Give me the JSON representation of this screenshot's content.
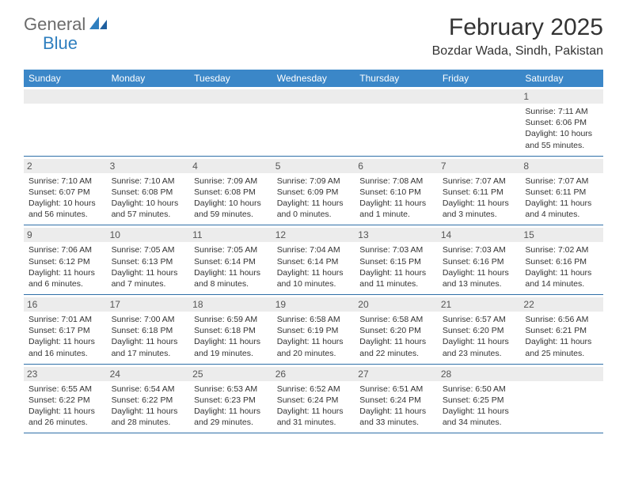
{
  "brand": {
    "part1": "General",
    "part2": "Blue"
  },
  "title": "February 2025",
  "location": "Bozdar Wada, Sindh, Pakistan",
  "colors": {
    "header_bg": "#3b87c8",
    "header_text": "#ffffff",
    "daynum_bg": "#ececec",
    "border": "#2f6fa8",
    "text": "#333333",
    "brand_gray": "#6b6b6b",
    "brand_blue": "#2f7fbf"
  },
  "typography": {
    "title_fontsize": 30,
    "location_fontsize": 16,
    "weekday_fontsize": 12,
    "daynum_fontsize": 12,
    "body_fontsize": 10.5
  },
  "weekdays": [
    "Sunday",
    "Monday",
    "Tuesday",
    "Wednesday",
    "Thursday",
    "Friday",
    "Saturday"
  ],
  "weeks": [
    [
      {
        "n": "",
        "sr": "",
        "ss": "",
        "dl": ""
      },
      {
        "n": "",
        "sr": "",
        "ss": "",
        "dl": ""
      },
      {
        "n": "",
        "sr": "",
        "ss": "",
        "dl": ""
      },
      {
        "n": "",
        "sr": "",
        "ss": "",
        "dl": ""
      },
      {
        "n": "",
        "sr": "",
        "ss": "",
        "dl": ""
      },
      {
        "n": "",
        "sr": "",
        "ss": "",
        "dl": ""
      },
      {
        "n": "1",
        "sr": "Sunrise: 7:11 AM",
        "ss": "Sunset: 6:06 PM",
        "dl": "Daylight: 10 hours and 55 minutes."
      }
    ],
    [
      {
        "n": "2",
        "sr": "Sunrise: 7:10 AM",
        "ss": "Sunset: 6:07 PM",
        "dl": "Daylight: 10 hours and 56 minutes."
      },
      {
        "n": "3",
        "sr": "Sunrise: 7:10 AM",
        "ss": "Sunset: 6:08 PM",
        "dl": "Daylight: 10 hours and 57 minutes."
      },
      {
        "n": "4",
        "sr": "Sunrise: 7:09 AM",
        "ss": "Sunset: 6:08 PM",
        "dl": "Daylight: 10 hours and 59 minutes."
      },
      {
        "n": "5",
        "sr": "Sunrise: 7:09 AM",
        "ss": "Sunset: 6:09 PM",
        "dl": "Daylight: 11 hours and 0 minutes."
      },
      {
        "n": "6",
        "sr": "Sunrise: 7:08 AM",
        "ss": "Sunset: 6:10 PM",
        "dl": "Daylight: 11 hours and 1 minute."
      },
      {
        "n": "7",
        "sr": "Sunrise: 7:07 AM",
        "ss": "Sunset: 6:11 PM",
        "dl": "Daylight: 11 hours and 3 minutes."
      },
      {
        "n": "8",
        "sr": "Sunrise: 7:07 AM",
        "ss": "Sunset: 6:11 PM",
        "dl": "Daylight: 11 hours and 4 minutes."
      }
    ],
    [
      {
        "n": "9",
        "sr": "Sunrise: 7:06 AM",
        "ss": "Sunset: 6:12 PM",
        "dl": "Daylight: 11 hours and 6 minutes."
      },
      {
        "n": "10",
        "sr": "Sunrise: 7:05 AM",
        "ss": "Sunset: 6:13 PM",
        "dl": "Daylight: 11 hours and 7 minutes."
      },
      {
        "n": "11",
        "sr": "Sunrise: 7:05 AM",
        "ss": "Sunset: 6:14 PM",
        "dl": "Daylight: 11 hours and 8 minutes."
      },
      {
        "n": "12",
        "sr": "Sunrise: 7:04 AM",
        "ss": "Sunset: 6:14 PM",
        "dl": "Daylight: 11 hours and 10 minutes."
      },
      {
        "n": "13",
        "sr": "Sunrise: 7:03 AM",
        "ss": "Sunset: 6:15 PM",
        "dl": "Daylight: 11 hours and 11 minutes."
      },
      {
        "n": "14",
        "sr": "Sunrise: 7:03 AM",
        "ss": "Sunset: 6:16 PM",
        "dl": "Daylight: 11 hours and 13 minutes."
      },
      {
        "n": "15",
        "sr": "Sunrise: 7:02 AM",
        "ss": "Sunset: 6:16 PM",
        "dl": "Daylight: 11 hours and 14 minutes."
      }
    ],
    [
      {
        "n": "16",
        "sr": "Sunrise: 7:01 AM",
        "ss": "Sunset: 6:17 PM",
        "dl": "Daylight: 11 hours and 16 minutes."
      },
      {
        "n": "17",
        "sr": "Sunrise: 7:00 AM",
        "ss": "Sunset: 6:18 PM",
        "dl": "Daylight: 11 hours and 17 minutes."
      },
      {
        "n": "18",
        "sr": "Sunrise: 6:59 AM",
        "ss": "Sunset: 6:18 PM",
        "dl": "Daylight: 11 hours and 19 minutes."
      },
      {
        "n": "19",
        "sr": "Sunrise: 6:58 AM",
        "ss": "Sunset: 6:19 PM",
        "dl": "Daylight: 11 hours and 20 minutes."
      },
      {
        "n": "20",
        "sr": "Sunrise: 6:58 AM",
        "ss": "Sunset: 6:20 PM",
        "dl": "Daylight: 11 hours and 22 minutes."
      },
      {
        "n": "21",
        "sr": "Sunrise: 6:57 AM",
        "ss": "Sunset: 6:20 PM",
        "dl": "Daylight: 11 hours and 23 minutes."
      },
      {
        "n": "22",
        "sr": "Sunrise: 6:56 AM",
        "ss": "Sunset: 6:21 PM",
        "dl": "Daylight: 11 hours and 25 minutes."
      }
    ],
    [
      {
        "n": "23",
        "sr": "Sunrise: 6:55 AM",
        "ss": "Sunset: 6:22 PM",
        "dl": "Daylight: 11 hours and 26 minutes."
      },
      {
        "n": "24",
        "sr": "Sunrise: 6:54 AM",
        "ss": "Sunset: 6:22 PM",
        "dl": "Daylight: 11 hours and 28 minutes."
      },
      {
        "n": "25",
        "sr": "Sunrise: 6:53 AM",
        "ss": "Sunset: 6:23 PM",
        "dl": "Daylight: 11 hours and 29 minutes."
      },
      {
        "n": "26",
        "sr": "Sunrise: 6:52 AM",
        "ss": "Sunset: 6:24 PM",
        "dl": "Daylight: 11 hours and 31 minutes."
      },
      {
        "n": "27",
        "sr": "Sunrise: 6:51 AM",
        "ss": "Sunset: 6:24 PM",
        "dl": "Daylight: 11 hours and 33 minutes."
      },
      {
        "n": "28",
        "sr": "Sunrise: 6:50 AM",
        "ss": "Sunset: 6:25 PM",
        "dl": "Daylight: 11 hours and 34 minutes."
      },
      {
        "n": "",
        "sr": "",
        "ss": "",
        "dl": ""
      }
    ]
  ]
}
